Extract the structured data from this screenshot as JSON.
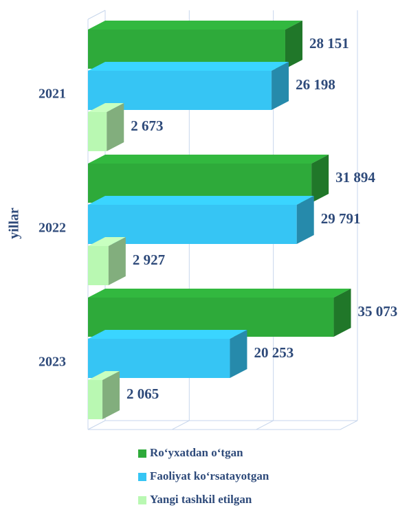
{
  "chart_data": {
    "type": "bar",
    "y_label": "yillar",
    "categories": [
      "2021",
      "2022",
      "2023"
    ],
    "series": [
      {
        "name": "Ro‘yxatdan o‘tgan",
        "color": "#2eaa3a",
        "values": [
          28151,
          31894,
          35073
        ],
        "value_labels": [
          "28 151",
          "31 894",
          "35 073"
        ]
      },
      {
        "name": "Faoliyat ko‘rsatayotgan",
        "color": "#36c5f4",
        "values": [
          26198,
          29791,
          20253
        ],
        "value_labels": [
          "26 198",
          "29 791",
          "20 253"
        ]
      },
      {
        "name": "Yangi tashkil etilgan",
        "color": "#b9f8b2",
        "values": [
          2673,
          2927,
          2065
        ],
        "value_labels": [
          "2 673",
          "2 927",
          "2 065"
        ]
      }
    ],
    "xlim": [
      0,
      36000
    ],
    "xticks": [
      0,
      12000,
      24000,
      36000
    ],
    "grid": true
  }
}
